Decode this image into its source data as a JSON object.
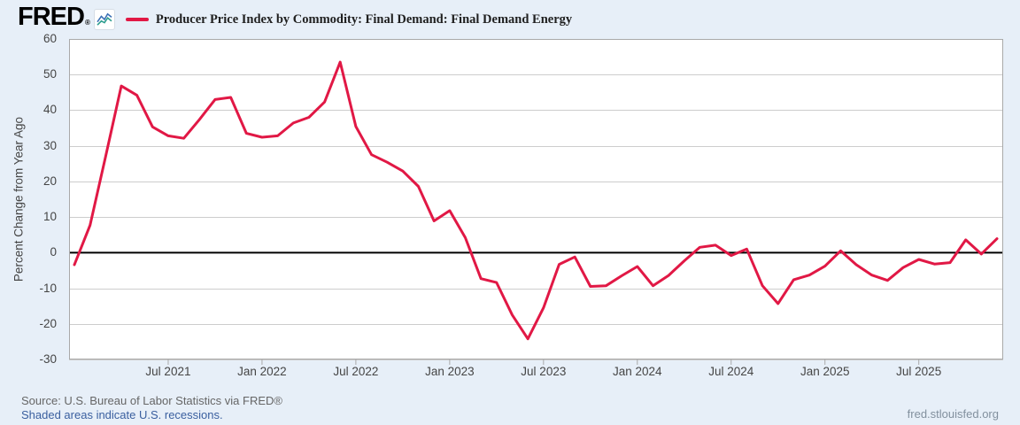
{
  "header": {
    "logo": "FRED",
    "logo_reg": "®",
    "legend_label": "Producer Price Index by Commodity: Final Demand: Final Demand Energy"
  },
  "footer": {
    "source": "Source: U.S. Bureau of Labor Statistics via FRED®",
    "recessions_note": "Shaded areas indicate U.S. recessions.",
    "site": "fred.stlouisfed.org"
  },
  "colors": {
    "line": "#e11845",
    "page_bg": "#e7eff8",
    "plot_bg": "#ffffff",
    "grid": "#cdcdcd",
    "frame": "#a9a9a9",
    "zero_line": "#000000",
    "tick_text": "#454545",
    "link": "#3a5f9f"
  },
  "chart_data": {
    "type": "line",
    "title": "Producer Price Index by Commodity: Final Demand: Final Demand Energy",
    "ylabel": "Percent Change from Year Ago",
    "ylim": [
      -30,
      60
    ],
    "yticks": [
      60,
      50,
      40,
      30,
      20,
      10,
      0,
      -10,
      -20,
      -30
    ],
    "grid": true,
    "zero_line": true,
    "legend_position": "top-left",
    "x_start_month": "2021-01",
    "x_end_month": "2025-12",
    "xtick_labels": [
      "Jul 2021",
      "Jan 2022",
      "Jul 2022",
      "Jan 2023",
      "Jul 2023",
      "Jan 2024",
      "Jul 2024",
      "Jan 2025",
      "Jul 2025"
    ],
    "xtick_month_offsets": [
      6,
      12,
      18,
      24,
      30,
      36,
      42,
      48,
      54
    ],
    "series": [
      {
        "name": "Producer Price Index by Commodity: Final Demand: Final Demand Energy",
        "frequency": "monthly",
        "values": [
          -3.4,
          7.7,
          27.0,
          46.8,
          44.2,
          35.3,
          32.8,
          32.1,
          37.4,
          43.0,
          43.6,
          33.5,
          32.4,
          32.8,
          36.4,
          38.0,
          42.3,
          53.5,
          35.4,
          27.5,
          25.4,
          22.9,
          18.6,
          8.9,
          11.8,
          4.2,
          -7.3,
          -8.4,
          -17.5,
          -24.2,
          -15.5,
          -3.3,
          -1.2,
          -9.5,
          -9.3,
          -6.5,
          -3.9,
          -9.3,
          -6.4,
          -2.3,
          1.5,
          2.1,
          -0.8,
          1.0,
          -9.3,
          -14.3,
          -7.6,
          -6.3,
          -3.8,
          0.5,
          -3.4,
          -6.3,
          -7.8,
          -4.2,
          -1.9,
          -3.2,
          -2.8,
          3.6,
          -0.4,
          3.9
        ]
      }
    ]
  }
}
